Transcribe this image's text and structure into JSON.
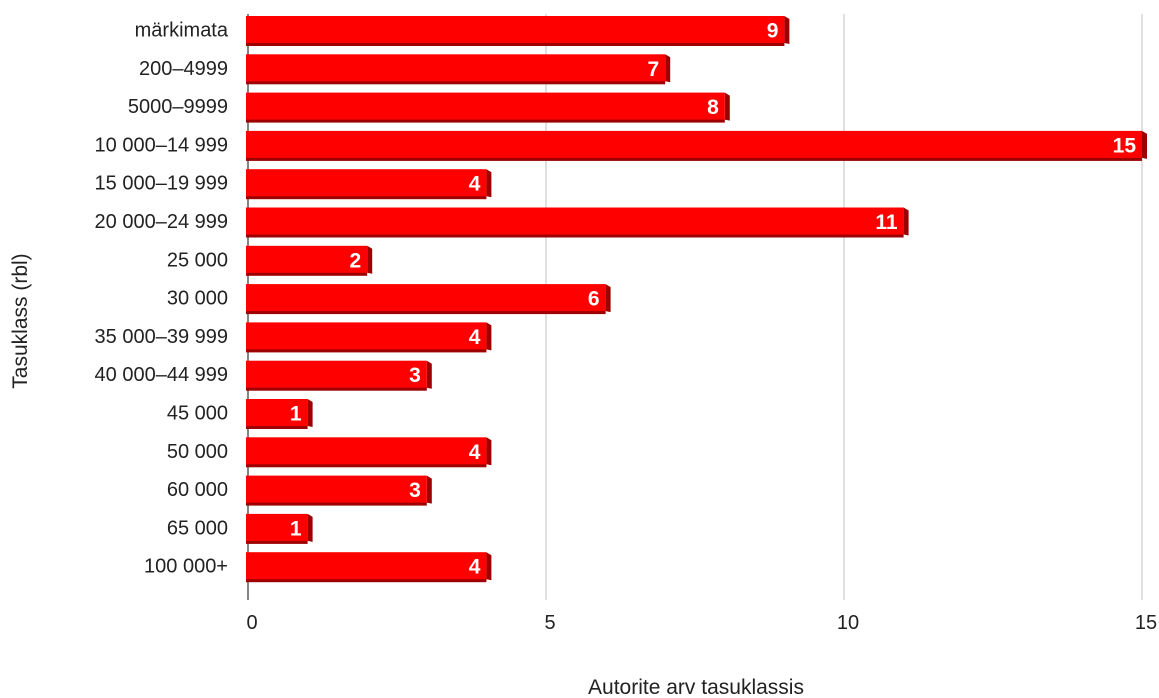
{
  "chart_data": {
    "type": "bar",
    "orientation": "horizontal",
    "title": "",
    "xlabel": "Autorite arv tasuklassis",
    "ylabel": "Tasuklass (rbl)",
    "categories": [
      "märkimata",
      "200–4999",
      "5000–9999",
      "10 000–14 999",
      "15 000–19 999",
      "20 000–24 999",
      "25 000",
      "30 000",
      "35 000–39 999",
      "40 000–44 999",
      "45 000",
      "50 000",
      "60 000",
      "65 000",
      "100 000+"
    ],
    "values": [
      9,
      7,
      8,
      15,
      4,
      11,
      2,
      6,
      4,
      3,
      1,
      4,
      3,
      1,
      4
    ],
    "xlim": [
      0,
      15
    ],
    "xticks": [
      "0",
      "5",
      "10",
      "15"
    ],
    "grid": "vertical",
    "legend": "none",
    "colors": {
      "bar": "#ff0000",
      "bar_shadow": "#9e0000",
      "grid": "#cccccc",
      "text": "#222222",
      "label": "#ffffff"
    }
  }
}
